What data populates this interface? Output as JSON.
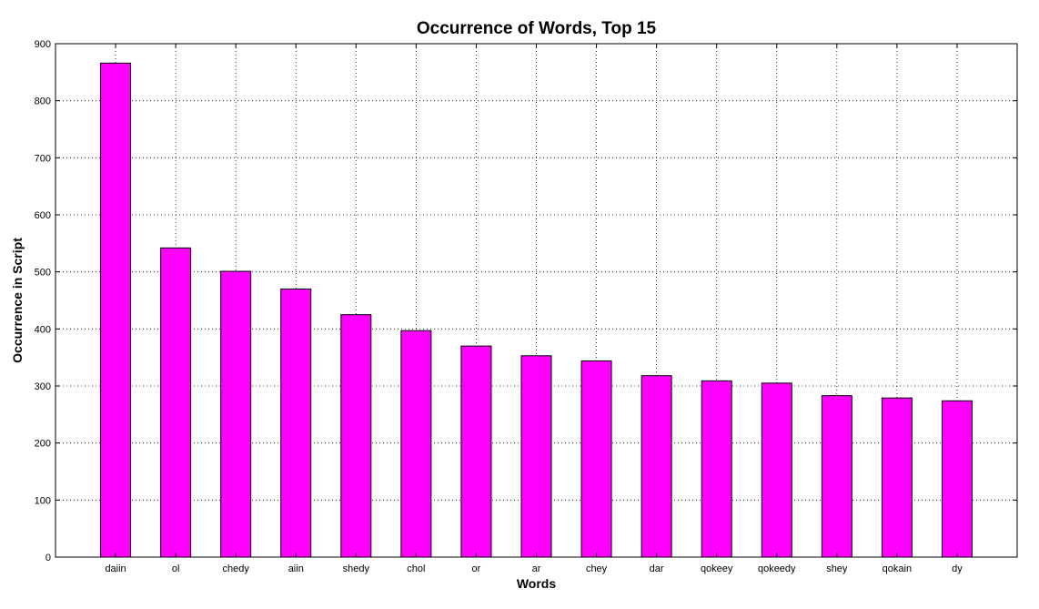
{
  "chart_data": {
    "type": "bar",
    "title": "Occurrence of Words, Top 15",
    "xlabel": "Words",
    "ylabel": "Occurrence in Script",
    "categories": [
      "daiin",
      "ol",
      "chedy",
      "aiin",
      "shedy",
      "chol",
      "or",
      "ar",
      "chey",
      "dar",
      "qokeey",
      "qokeedy",
      "shey",
      "qokain",
      "dy"
    ],
    "values": [
      866,
      542,
      501,
      470,
      425,
      397,
      370,
      353,
      344,
      318,
      309,
      305,
      283,
      279,
      274
    ],
    "ylim": [
      0,
      900
    ],
    "yticks": [
      0,
      100,
      200,
      300,
      400,
      500,
      600,
      700,
      800,
      900
    ],
    "grid": true,
    "bar_color": "#ff00ff"
  }
}
